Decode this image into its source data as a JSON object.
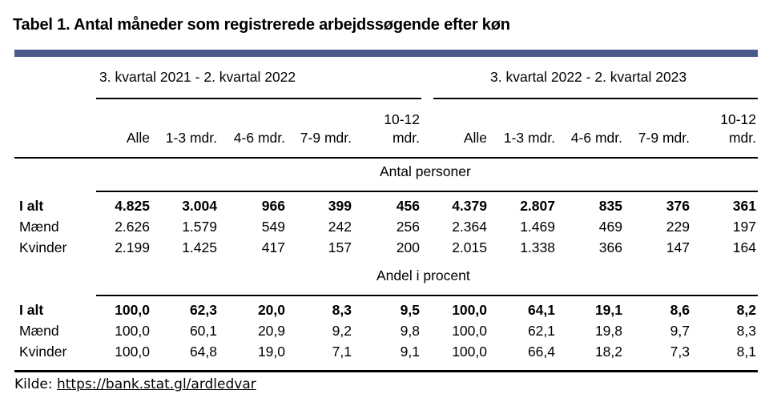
{
  "title": "Tabel 1. Antal måneder som registrerede arbejdssøgende efter køn",
  "periods": [
    "3. kvartal 2021 - 2. kvartal 2022",
    "3. kvartal 2022 - 2. kvartal 2023"
  ],
  "columns": [
    "Alle",
    "1-3 mdr.",
    "4-6 mdr.",
    "7-9 mdr.",
    "10-12\nmdr."
  ],
  "sections": [
    {
      "label": "Antal personer",
      "rows": [
        {
          "label": "I alt",
          "bold": true,
          "values": [
            "4.825",
            "3.004",
            "966",
            "399",
            "456",
            "4.379",
            "2.807",
            "835",
            "376",
            "361"
          ]
        },
        {
          "label": "Mænd",
          "bold": false,
          "values": [
            "2.626",
            "1.579",
            "549",
            "242",
            "256",
            "2.364",
            "1.469",
            "469",
            "229",
            "197"
          ]
        },
        {
          "label": "Kvinder",
          "bold": false,
          "values": [
            "2.199",
            "1.425",
            "417",
            "157",
            "200",
            "2.015",
            "1.338",
            "366",
            "147",
            "164"
          ]
        }
      ]
    },
    {
      "label": "Andel i procent",
      "rows": [
        {
          "label": "I alt",
          "bold": true,
          "values": [
            "100,0",
            "62,3",
            "20,0",
            "8,3",
            "9,5",
            "100,0",
            "64,1",
            "19,1",
            "8,6",
            "8,2"
          ]
        },
        {
          "label": "Mænd",
          "bold": false,
          "values": [
            "100,0",
            "60,1",
            "20,9",
            "9,2",
            "9,8",
            "100,0",
            "62,1",
            "19,8",
            "9,7",
            "8,3"
          ]
        },
        {
          "label": "Kvinder",
          "bold": false,
          "values": [
            "100,0",
            "64,8",
            "19,0",
            "7,1",
            "9,1",
            "100,0",
            "66,4",
            "18,2",
            "7,3",
            "8,1"
          ]
        }
      ]
    }
  ],
  "source": {
    "label": "Kilde:",
    "link": "https://bank.stat.gl/ardledvar"
  }
}
